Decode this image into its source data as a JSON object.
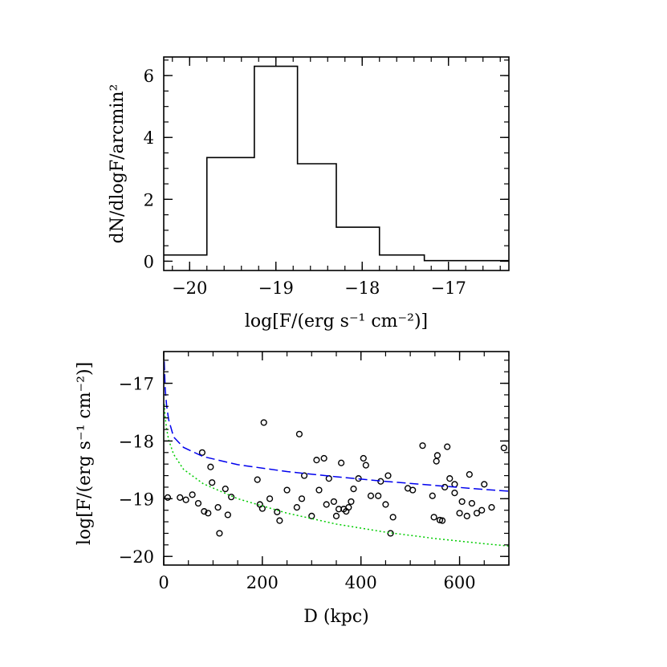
{
  "chart_data": [
    {
      "type": "histogram",
      "xlabel": "log[F/(erg s⁻¹ cm⁻²)]",
      "ylabel": "dN/dlogF/arcmin²",
      "xlim": [
        -20.3,
        -16.3
      ],
      "ylim": [
        -0.3,
        6.6
      ],
      "xticks": [
        -20,
        -19,
        -18,
        -17
      ],
      "xtick_labels": [
        "−20",
        "−19",
        "−18",
        "−17"
      ],
      "yticks": [
        0,
        2,
        4,
        6
      ],
      "ytick_labels": [
        "0",
        "2",
        "4",
        "6"
      ],
      "grid": false,
      "bins": [
        {
          "x0": -20.3,
          "x1": -19.8,
          "value": 0.2
        },
        {
          "x0": -19.8,
          "x1": -19.25,
          "value": 3.35
        },
        {
          "x0": -19.25,
          "x1": -18.75,
          "value": 6.3
        },
        {
          "x0": -18.75,
          "x1": -18.3,
          "value": 3.15
        },
        {
          "x0": -18.3,
          "x1": -17.8,
          "value": 1.1
        },
        {
          "x0": -17.8,
          "x1": -17.28,
          "value": 0.2
        },
        {
          "x0": -17.28,
          "x1": -16.3,
          "value": 0.02
        }
      ]
    },
    {
      "type": "scatter",
      "xlabel": "D (kpc)",
      "ylabel": "log[F/(erg s⁻¹ cm⁻²)]",
      "xlim": [
        0,
        700
      ],
      "ylim": [
        -20.15,
        -16.45
      ],
      "xticks": [
        0,
        200,
        400,
        600
      ],
      "xtick_labels": [
        "0",
        "200",
        "400",
        "600"
      ],
      "yticks": [
        -17,
        -18,
        -19,
        -20
      ],
      "ytick_labels": [
        "−17",
        "−18",
        "−19",
        "−20"
      ],
      "grid": false,
      "series": [
        {
          "style": "open-circle",
          "color": "#000000",
          "points": [
            [
              8,
              -18.98
            ],
            [
              33,
              -18.98
            ],
            [
              45,
              -19.02
            ],
            [
              58,
              -18.93
            ],
            [
              70,
              -19.08
            ],
            [
              78,
              -18.2
            ],
            [
              82,
              -19.22
            ],
            [
              90,
              -19.25
            ],
            [
              95,
              -18.45
            ],
            [
              98,
              -18.72
            ],
            [
              110,
              -19.15
            ],
            [
              113,
              -19.6
            ],
            [
              125,
              -18.83
            ],
            [
              130,
              -19.28
            ],
            [
              137,
              -18.97
            ],
            [
              190,
              -18.67
            ],
            [
              195,
              -19.1
            ],
            [
              200,
              -19.17
            ],
            [
              203,
              -17.68
            ],
            [
              215,
              -19.0
            ],
            [
              230,
              -19.23
            ],
            [
              235,
              -19.38
            ],
            [
              250,
              -18.85
            ],
            [
              270,
              -19.15
            ],
            [
              275,
              -17.88
            ],
            [
              280,
              -19.0
            ],
            [
              285,
              -18.6
            ],
            [
              300,
              -19.3
            ],
            [
              310,
              -18.33
            ],
            [
              315,
              -18.85
            ],
            [
              325,
              -18.3
            ],
            [
              330,
              -19.1
            ],
            [
              335,
              -18.65
            ],
            [
              345,
              -19.05
            ],
            [
              350,
              -19.3
            ],
            [
              355,
              -19.18
            ],
            [
              360,
              -18.38
            ],
            [
              365,
              -19.18
            ],
            [
              370,
              -19.22
            ],
            [
              375,
              -19.15
            ],
            [
              380,
              -19.05
            ],
            [
              385,
              -18.83
            ],
            [
              395,
              -18.65
            ],
            [
              405,
              -18.3
            ],
            [
              410,
              -18.42
            ],
            [
              420,
              -18.95
            ],
            [
              435,
              -18.95
            ],
            [
              440,
              -18.7
            ],
            [
              450,
              -19.1
            ],
            [
              455,
              -18.6
            ],
            [
              460,
              -19.6
            ],
            [
              465,
              -19.32
            ],
            [
              495,
              -18.82
            ],
            [
              505,
              -18.85
            ],
            [
              525,
              -18.08
            ],
            [
              545,
              -18.95
            ],
            [
              548,
              -19.32
            ],
            [
              553,
              -18.35
            ],
            [
              555,
              -18.25
            ],
            [
              560,
              -19.37
            ],
            [
              565,
              -19.38
            ],
            [
              570,
              -18.8
            ],
            [
              575,
              -18.1
            ],
            [
              580,
              -18.65
            ],
            [
              590,
              -18.75
            ],
            [
              590,
              -18.9
            ],
            [
              600,
              -19.25
            ],
            [
              605,
              -19.05
            ],
            [
              615,
              -19.3
            ],
            [
              620,
              -18.58
            ],
            [
              625,
              -19.08
            ],
            [
              635,
              -19.25
            ],
            [
              645,
              -19.2
            ],
            [
              650,
              -18.75
            ],
            [
              665,
              -19.15
            ],
            [
              690,
              -18.12
            ]
          ]
        },
        {
          "style": "dashed",
          "color": "#0000ee",
          "points": [
            [
              1,
              -16.62
            ],
            [
              3,
              -17.1
            ],
            [
              6,
              -17.4
            ],
            [
              10,
              -17.63
            ],
            [
              20,
              -17.93
            ],
            [
              40,
              -18.11
            ],
            [
              80,
              -18.27
            ],
            [
              150,
              -18.41
            ],
            [
              250,
              -18.53
            ],
            [
              350,
              -18.62
            ],
            [
              450,
              -18.7
            ],
            [
              550,
              -18.77
            ],
            [
              650,
              -18.84
            ],
            [
              700,
              -18.87
            ]
          ]
        },
        {
          "style": "dotted",
          "color": "#00cc00",
          "points": [
            [
              1,
              -17.36
            ],
            [
              3,
              -17.6
            ],
            [
              6,
              -17.8
            ],
            [
              10,
              -17.98
            ],
            [
              20,
              -18.23
            ],
            [
              40,
              -18.49
            ],
            [
              80,
              -18.74
            ],
            [
              150,
              -19.0
            ],
            [
              250,
              -19.25
            ],
            [
              350,
              -19.44
            ],
            [
              450,
              -19.58
            ],
            [
              550,
              -19.69
            ],
            [
              650,
              -19.78
            ],
            [
              700,
              -19.82
            ]
          ]
        }
      ]
    }
  ]
}
